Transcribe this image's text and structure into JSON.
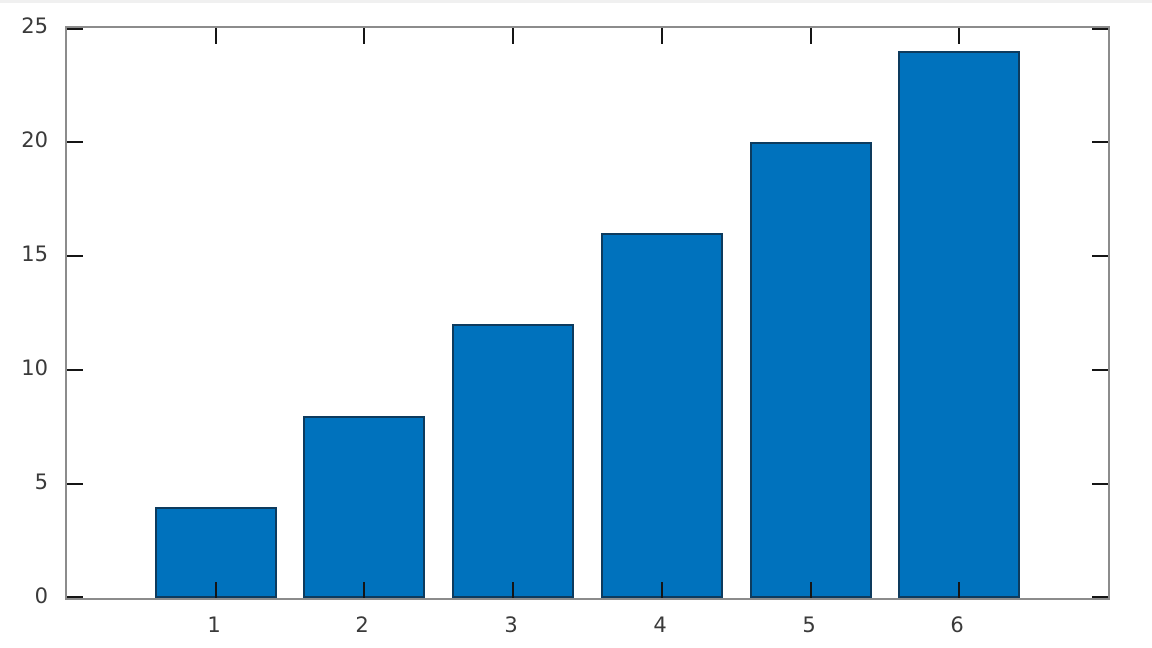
{
  "window": {
    "background_color": "#ffffff",
    "top_edge_color": "#f0f0f0"
  },
  "chart_data": {
    "type": "bar",
    "categories": [
      "1",
      "2",
      "3",
      "4",
      "5",
      "6"
    ],
    "values": [
      4,
      8,
      12,
      16,
      20,
      24
    ],
    "title": "",
    "xlabel": "",
    "ylabel": "",
    "xlim": [
      0,
      7
    ],
    "ylim": [
      0,
      25
    ],
    "x_positions": [
      1,
      2,
      3,
      4,
      5,
      6
    ],
    "yticks": [
      0,
      5,
      10,
      15,
      20,
      25
    ],
    "ytick_labels": [
      "0",
      "5",
      "10",
      "15",
      "20",
      "25"
    ],
    "grid": false,
    "legend": false,
    "box": true,
    "ticks_inward_all_sides": true,
    "bar_width_fraction": 0.82,
    "colors": {
      "bar_face": "#0072bd",
      "bar_edge": "#0d3b5e",
      "axis_box": "#8c8c8c",
      "tick_mark": "#151515",
      "tick_label": "#3a3a3a"
    }
  }
}
